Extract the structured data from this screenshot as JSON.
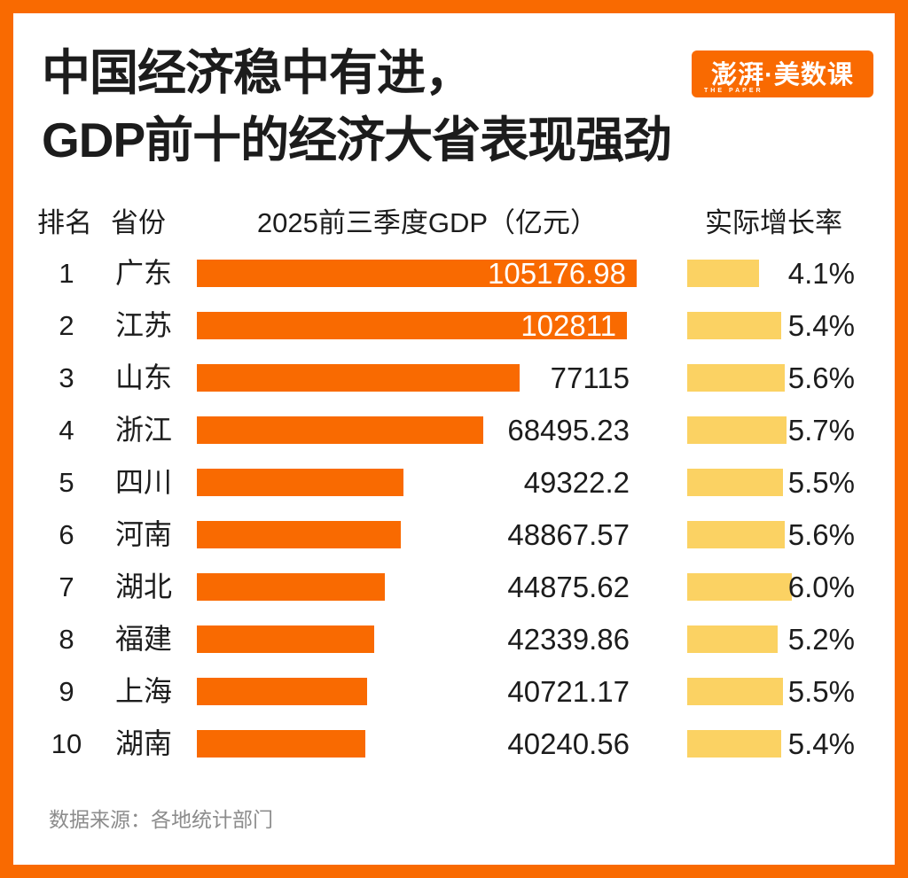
{
  "title": {
    "line1": "中国经济稳中有进，",
    "line2": "GDP前十的经济大省表现强劲"
  },
  "logo": {
    "text": "澎湃·美数课",
    "subtext": "THE PAPER"
  },
  "table_headers": {
    "rank": "排名",
    "province": "省份",
    "gdp": "2025前三季度GDP（亿元）",
    "growth": "实际增长率"
  },
  "chart_data": {
    "type": "bar",
    "orientation": "horizontal",
    "title": "中国经济稳中有进，GDP前十的经济大省表现强劲",
    "categories": [
      "广东",
      "江苏",
      "山东",
      "浙江",
      "四川",
      "河南",
      "湖北",
      "福建",
      "上海",
      "湖南"
    ],
    "ranks": [
      "1",
      "2",
      "3",
      "4",
      "5",
      "6",
      "7",
      "8",
      "9",
      "10"
    ],
    "series": [
      {
        "name": "2025前三季度GDP（亿元）",
        "values": [
          105176.98,
          102811,
          77115,
          68495.23,
          49322.2,
          48867.57,
          44875.62,
          42339.86,
          40721.17,
          40240.56
        ],
        "labels": [
          "105176.98",
          "102811",
          "77115",
          "68495.23",
          "49322.2",
          "48867.57",
          "44875.62",
          "42339.86",
          "40721.17",
          "40240.56"
        ],
        "color": "#F96A01",
        "xlim": [
          0,
          110000
        ]
      },
      {
        "name": "实际增长率",
        "values": [
          4.1,
          5.4,
          5.6,
          5.7,
          5.5,
          5.6,
          6.0,
          5.2,
          5.5,
          5.4
        ],
        "labels": [
          "4.1%",
          "5.4%",
          "5.6%",
          "5.7%",
          "5.5%",
          "5.6%",
          "6.0%",
          "5.2%",
          "5.5%",
          "5.4%"
        ],
        "unit": "%",
        "color": "#FBD263",
        "xlim": [
          0,
          6.5
        ]
      }
    ],
    "legend": false,
    "grid": false,
    "value_labels_shown": true
  },
  "footer": {
    "source": "数据来源：各地统计部门"
  },
  "colors": {
    "accent_orange": "#F96A01",
    "growth_yellow": "#FBD263",
    "text_ink": "#1C1C1C",
    "source_gray": "#8C8C8C",
    "background": "#FFFFFF"
  }
}
